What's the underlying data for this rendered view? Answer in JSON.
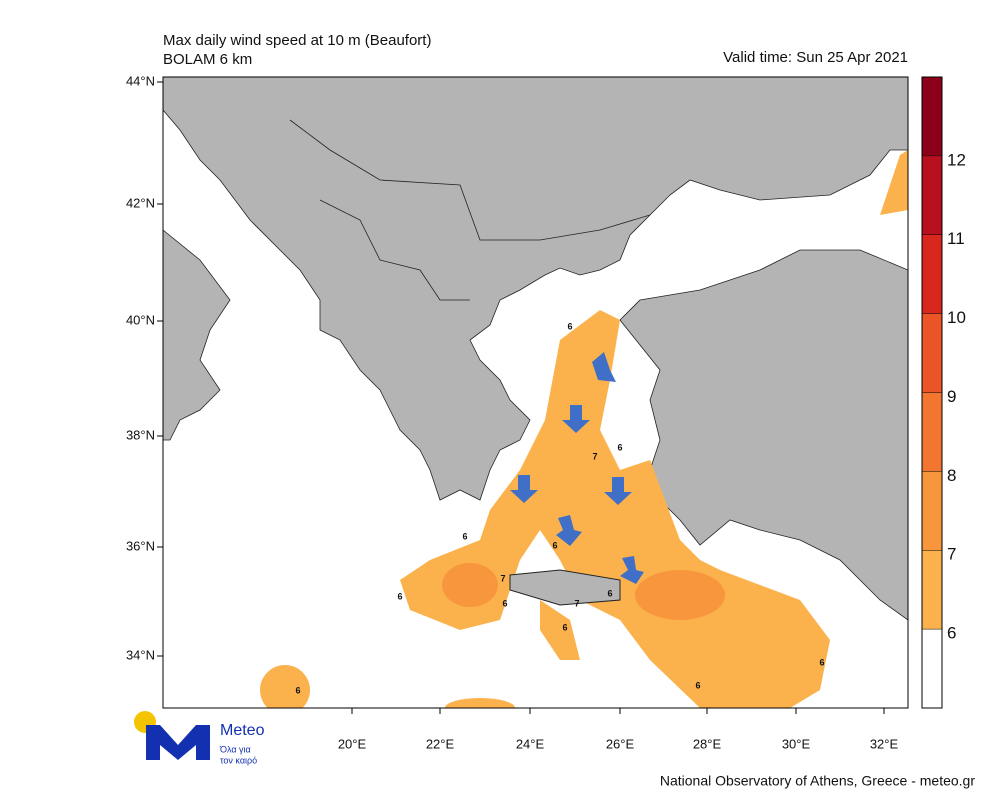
{
  "header": {
    "title": "Max daily wind speed at 10 m (Beaufort)",
    "subtitle": "BOLAM 6 km",
    "valid_time": "Valid time: Sun 25 Apr 2021"
  },
  "map": {
    "lat_labels": [
      "44°N",
      "42°N",
      "40°N",
      "38°N",
      "36°N",
      "34°N"
    ],
    "lon_labels": [
      "20°E",
      "22°E",
      "24°E",
      "26°E",
      "28°E",
      "30°E",
      "32°E"
    ],
    "contour_labels": [
      6,
      6,
      7,
      6,
      7,
      6,
      6,
      6,
      7,
      6,
      6,
      6,
      6,
      6
    ]
  },
  "colorbar": {
    "levels": [
      6,
      7,
      8,
      9,
      10,
      11,
      12
    ],
    "colors": [
      "#fbb24c",
      "#f8963e",
      "#f27630",
      "#ea5426",
      "#d8271f",
      "#b8101e",
      "#8c0019"
    ]
  },
  "logo": {
    "name": "Meteo",
    "tagline_1": "Όλα για",
    "tagline_2": "τον καιρό"
  },
  "footer": "National Observatory of Athens, Greece - meteo.gr"
}
